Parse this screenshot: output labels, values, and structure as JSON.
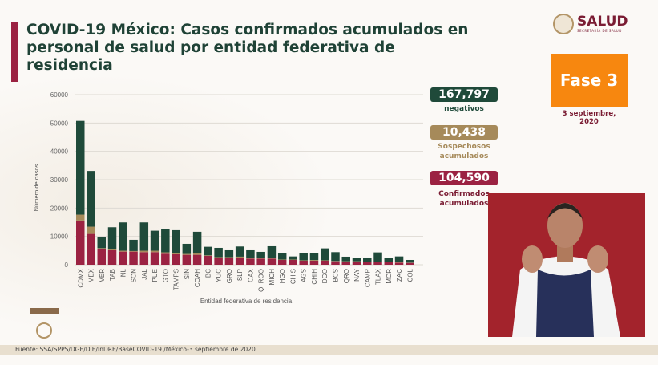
{
  "title_line1": "COVID-19 México: Casos confirmados acumulados en",
  "title_line2": "personal de salud por entidad federativa de residencia",
  "logo": {
    "name": "SALUD",
    "sub": "SECRETARÍA DE SALUD"
  },
  "fase": "Fase 3",
  "date_line1": "3 septiembre,",
  "date_line2": "2020",
  "stats": {
    "negativos": {
      "value": "167,797",
      "label": "negativos",
      "color": "#1f4a3a"
    },
    "sospechosos": {
      "value": "10,438",
      "label1": "Sospechosos",
      "label2": "acumulados",
      "color": "#a68a5a"
    },
    "confirmados": {
      "value": "104,590",
      "label1": "Confirmados",
      "label2": "acumulados",
      "color": "#9b2242"
    }
  },
  "footer": "Fuente: SSA/SPPS/DGE/DIE/InDRE/BaseCOVID-19 /México-3 septiembre de 2020",
  "chart_data": {
    "type": "bar",
    "stacked": true,
    "xlabel": "Entidad federativa de residencia",
    "ylabel": "Número de casos",
    "ylim": [
      0,
      60000
    ],
    "yticks": [
      0,
      10000,
      20000,
      30000,
      40000,
      50000,
      60000
    ],
    "grid": true,
    "categories": [
      "CDMX",
      "MEX",
      "VER",
      "TAB",
      "NL",
      "SON",
      "JAL",
      "PUE",
      "GTO",
      "TAMPS",
      "SIN",
      "COAH",
      "BC",
      "YUC",
      "GRO",
      "SLP",
      "OAX",
      "Q. ROO",
      "MICH",
      "HGO",
      "CHIS",
      "AGS",
      "CHIH",
      "DGO",
      "BCS",
      "QRO",
      "NAY",
      "CAMP",
      "TLAX",
      "MOR",
      "ZAC",
      "COL"
    ],
    "series": [
      {
        "name": "Confirmados",
        "color": "#9b2242",
        "values": [
          15600,
          10870,
          5480,
          5100,
          4630,
          4630,
          4440,
          4440,
          3880,
          3690,
          3500,
          3500,
          3120,
          2550,
          2550,
          2550,
          2170,
          2170,
          2170,
          1700,
          1700,
          1420,
          1420,
          1420,
          1230,
          1130,
          1130,
          950,
          950,
          950,
          760,
          660
        ]
      },
      {
        "name": "Sospechosos",
        "color": "#a68a5a",
        "values": [
          2070,
          2550,
          380,
          380,
          300,
          200,
          500,
          500,
          500,
          400,
          300,
          600,
          200,
          150,
          150,
          300,
          150,
          150,
          300,
          150,
          150,
          150,
          250,
          150,
          100,
          100,
          100,
          100,
          100,
          100,
          100,
          80
        ]
      },
      {
        "name": "Negativos",
        "color": "#1f4a3a",
        "values": [
          33080,
          19660,
          3880,
          7750,
          10000,
          3960,
          9990,
          7060,
          8190,
          8100,
          3570,
          7530,
          3010,
          3250,
          2400,
          3580,
          2780,
          2220,
          4050,
          2310,
          1080,
          2400,
          2300,
          4200,
          3110,
          1610,
          1130,
          1500,
          3300,
          1220,
          2070,
          960
        ]
      }
    ]
  }
}
